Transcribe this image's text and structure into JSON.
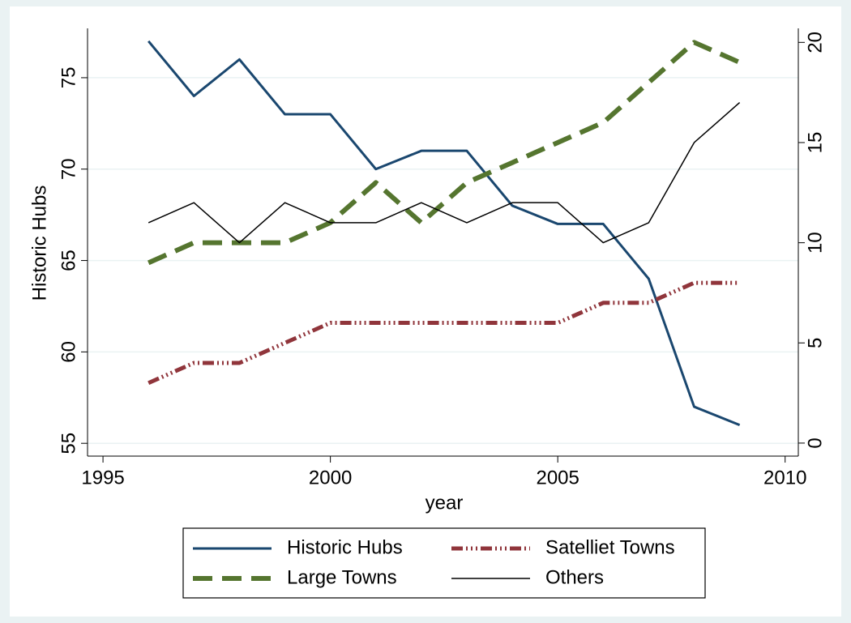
{
  "chart_data": {
    "type": "line",
    "x_label": "year",
    "y_label": "Historic Hubs",
    "x": [
      1996,
      1997,
      1998,
      1999,
      2000,
      2001,
      2002,
      2003,
      2004,
      2005,
      2006,
      2007,
      2008,
      2009
    ],
    "series": [
      {
        "name": "Historic Hubs",
        "color": "#1a476f",
        "values": [
          77,
          74,
          76,
          73,
          73,
          70,
          71,
          71,
          68,
          67,
          67,
          64,
          57,
          56
        ]
      },
      {
        "name": "Large Towns",
        "color": "#55752f",
        "axis": "y2",
        "values": [
          9,
          10,
          10,
          10,
          11,
          13,
          11,
          13,
          14,
          15,
          16,
          18,
          20,
          19
        ]
      },
      {
        "name": "Satelliet Towns",
        "color": "#90353b",
        "axis": "y2",
        "values": [
          3,
          4,
          4,
          5,
          6,
          6,
          6,
          6,
          6,
          6,
          7,
          7,
          8,
          8
        ]
      },
      {
        "name": "Others",
        "color": "#000000",
        "axis": "y2",
        "values": [
          11,
          12,
          10,
          12,
          11,
          11,
          12,
          11,
          12,
          12,
          10,
          11,
          15,
          17
        ]
      }
    ],
    "xlim": [
      1994.66,
      2010.29
    ],
    "xticks": [
      1995,
      2000,
      2005,
      2010
    ],
    "ylim": [
      54.3,
      77.7
    ],
    "yticks": [
      55,
      60,
      65,
      70,
      75
    ],
    "y2lim": [
      -0.65,
      20.7
    ],
    "y2ticks": [
      0,
      5,
      10,
      15,
      20
    ],
    "grid": true
  }
}
